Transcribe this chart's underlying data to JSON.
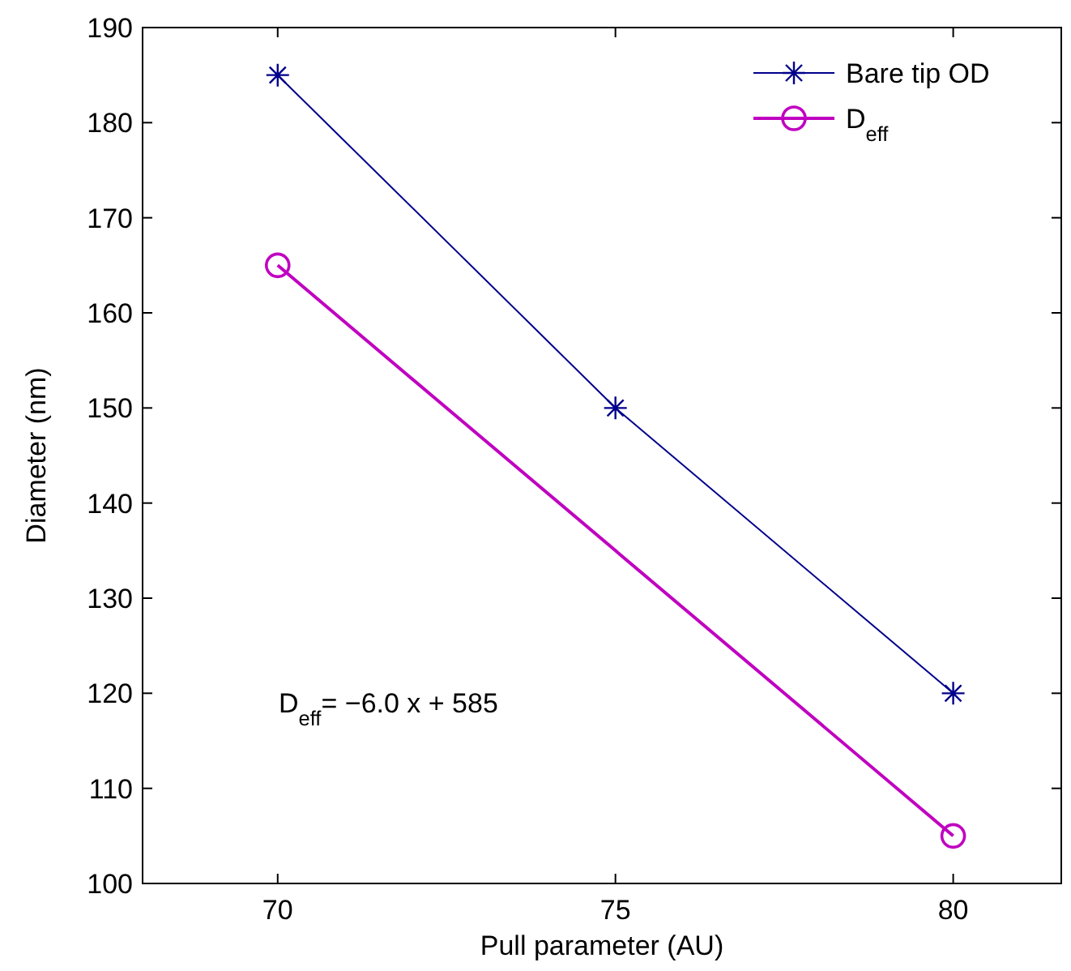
{
  "chart_data": {
    "type": "line",
    "xlabel": "Pull parameter (AU)",
    "ylabel": "Diameter (nm)",
    "xlim": [
      68,
      81.6
    ],
    "xticks": [
      70,
      75,
      80
    ],
    "ylim": [
      100,
      190
    ],
    "yticks": [
      100,
      110,
      120,
      130,
      140,
      150,
      160,
      170,
      180,
      190
    ],
    "legend": "top right",
    "grid": false,
    "series": [
      {
        "name": "Bare tip OD",
        "color": "#00008b",
        "x": [
          70,
          75,
          80
        ],
        "values": [
          185,
          150,
          120
        ],
        "marker": "cross"
      },
      {
        "name": "D$_{eff}$",
        "color": "#c000c0",
        "x": [
          70,
          80
        ],
        "values": [
          165,
          105
        ],
        "marker": "circle"
      }
    ],
    "annotations": [
      "D$_{eff}$= −6.0 x + 585"
    ]
  }
}
